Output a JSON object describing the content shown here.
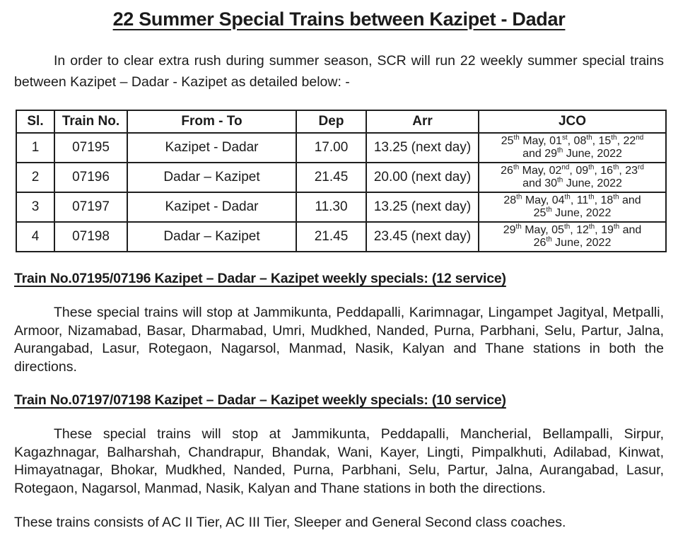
{
  "title": "22 Summer Special Trains between Kazipet - Dadar",
  "intro": "In order to clear extra rush during summer season, SCR will run 22 weekly summer special trains between Kazipet – Dadar - Kazipet as detailed below: -",
  "table": {
    "headers": [
      "Sl.",
      "Train No.",
      "From - To",
      "Dep",
      "Arr",
      "JCO"
    ],
    "rows": [
      {
        "sl": "1",
        "train_no": "07195",
        "from_to": "Kazipet - Dadar",
        "dep": "17.00",
        "arr": "13.25 (next day)",
        "jco_line1": "25th May, 01st, 08th, 15th, 22nd",
        "jco_line2": "and 29th June, 2022"
      },
      {
        "sl": "2",
        "train_no": "07196",
        "from_to": "Dadar – Kazipet",
        "dep": "21.45",
        "arr": "20.00 (next day)",
        "jco_line1": "26th May, 02nd, 09th, 16th, 23rd",
        "jco_line2": "and 30th June, 2022"
      },
      {
        "sl": "3",
        "train_no": "07197",
        "from_to": "Kazipet - Dadar",
        "dep": "11.30",
        "arr": "13.25 (next day)",
        "jco_line1": "28th May, 04th, 11th, 18th and",
        "jco_line2": "25th June, 2022"
      },
      {
        "sl": "4",
        "train_no": "07198",
        "from_to": "Dadar – Kazipet",
        "dep": "21.45",
        "arr": "23.45 (next day)",
        "jco_line1": "29th May, 05th, 12th, 19th and",
        "jco_line2": "26th June, 2022"
      }
    ]
  },
  "section1": {
    "heading": "Train No.07195/07196 Kazipet – Dadar – Kazipet weekly specials: (12 service)",
    "body": "These special trains will stop at Jammikunta, Peddapalli, Karimnagar, Lingampet Jagityal, Metpalli, Armoor, Nizamabad, Basar, Dharmabad, Umri, Mudkhed, Nanded, Purna, Parbhani, Selu, Partur, Jalna, Aurangabad, Lasur, Rotegaon, Nagarsol, Manmad, Nasik, Kalyan and Thane stations in both the directions."
  },
  "section2": {
    "heading": "Train No.07197/07198 Kazipet – Dadar – Kazipet weekly specials: (10 service)",
    "body": "These special trains will stop at Jammikunta, Peddapalli, Mancherial, Bellampalli, Sirpur, Kagazhnagar, Balharshah, Chandrapur, Bhandak, Wani, Kayer, Lingti, Pimpalkhuti, Adilabad, Kinwat, Himayatnagar, Bhokar, Mudkhed, Nanded, Purna, Parbhani, Selu, Partur, Jalna, Aurangabad, Lasur,  Rotegaon, Nagarsol, Manmad, Nasik, Kalyan and Thane stations in both the directions."
  },
  "coaches_note": "These trains consists of AC II Tier, AC III Tier, Sleeper and General Second class coaches.",
  "colors": {
    "text": "#1b1b1b",
    "border": "#1f1f1f",
    "background": "#ffffff"
  }
}
